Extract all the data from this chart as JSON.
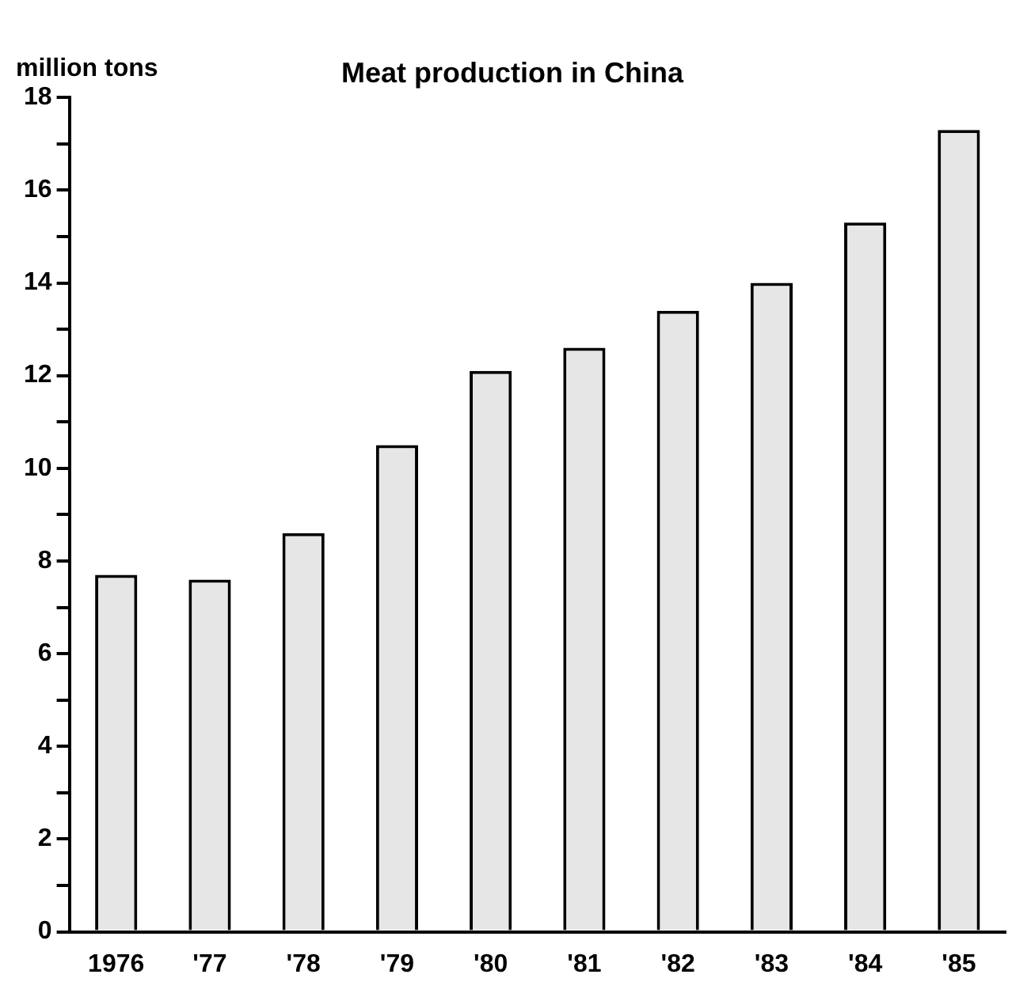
{
  "chart_data": {
    "type": "bar",
    "title": "Meat production in China",
    "ylabel": "million tons",
    "categories": [
      "1976",
      "'77",
      "'78",
      "'79",
      "'80",
      "'81",
      "'82",
      "'83",
      "'84",
      "'85"
    ],
    "values": [
      7.7,
      7.6,
      8.6,
      10.5,
      12.1,
      12.6,
      13.4,
      14.0,
      15.3,
      17.3
    ],
    "color": "#e6e6e6",
    "ylim": [
      0,
      18
    ],
    "yticks": [
      0,
      {
        "value": 1,
        "label": null
      },
      2,
      {
        "value": 3,
        "label": null
      },
      4,
      {
        "value": 5,
        "label": null
      },
      6,
      {
        "value": 7,
        "label": null
      },
      8,
      {
        "value": 9,
        "label": null
      },
      10,
      {
        "value": 11,
        "label": null
      },
      12,
      {
        "value": 13,
        "label": null
      },
      14,
      {
        "value": 15,
        "label": null
      },
      16,
      {
        "value": 17,
        "label": null
      },
      18
    ],
    "grid": false,
    "legend": false
  }
}
